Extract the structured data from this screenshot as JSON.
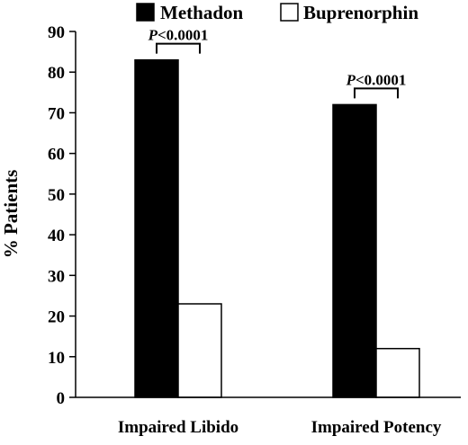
{
  "chart_data": {
    "type": "bar",
    "title": "",
    "xlabel": "",
    "ylabel": "% Patients",
    "ylim": [
      0,
      90
    ],
    "yticks": [
      0,
      10,
      20,
      30,
      40,
      50,
      60,
      70,
      80,
      90
    ],
    "categories": [
      "Impaired Libido",
      "Impaired Potency"
    ],
    "series": [
      {
        "name": "Methadon",
        "values": [
          83,
          72
        ],
        "color": "#000000"
      },
      {
        "name": "Buprenorphin",
        "values": [
          23,
          12
        ],
        "color": "#ffffff"
      }
    ],
    "legend": {
      "position": "top",
      "show": true
    },
    "grid": false,
    "annotations": [
      {
        "category": "Impaired Libido",
        "p_symbol": "P",
        "p_value_text": "<0.0001"
      },
      {
        "category": "Impaired Potency",
        "p_symbol": "P",
        "p_value_text": "<0.0001"
      }
    ]
  }
}
